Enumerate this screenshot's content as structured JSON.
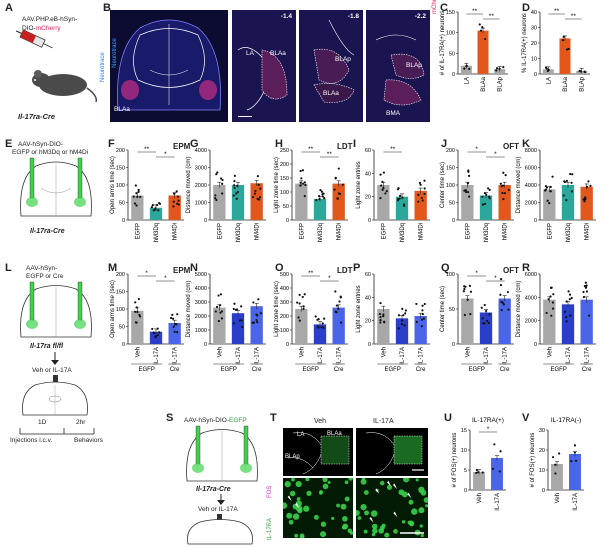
{
  "panels": {
    "A": {
      "letter": "A",
      "virus_line1": "AAV.PHP.eB-hSyn-",
      "virus_line2": "DIO-",
      "virus_color": "mCherry",
      "mouse": "Il-17ra-Cre"
    },
    "B": {
      "letter": "B",
      "neurotrace": "Neurotrace",
      "mcherry": "mCherry",
      "coords": [
        "-1.4",
        "-1.8",
        "-2.2"
      ],
      "region_labels": [
        "BLAa",
        "LA",
        "BLAa",
        "BLAp",
        "BLAa",
        "BLAp",
        "BMA"
      ]
    },
    "E": {
      "letter": "E",
      "virus_line1": "AAV-hSyn-DIO-",
      "virus_line2": "EGFP or hM3Dq or hM4Di",
      "mouse": "Il-17ra-Cre"
    },
    "L": {
      "letter": "L",
      "virus_line1": "AAV-hSyn-",
      "virus_line2": "EGFP or Cre",
      "mouse": "Il-17ra fl/fl",
      "veh_il17": "Veh or IL-17A",
      "timeline": [
        "1D",
        "2hr"
      ],
      "injections": "Injections i.c.v.",
      "behaviors": "Behaviors"
    },
    "S": {
      "letter": "S",
      "virus": "AAV-hSyn-DIO-",
      "virus_color": "EGFP",
      "mouse": "Il-17ra-Cre",
      "veh_il17": "Veh or IL-17A"
    },
    "T": {
      "letter": "T",
      "veh": "Veh",
      "il17": "IL-17A",
      "regions": [
        "LA",
        "BLAa",
        "BLAp"
      ],
      "il17ra": "IL-17RA",
      "fos": "FOS"
    }
  },
  "section_headers": {
    "epm1": "EPM",
    "ldt1": "LDT",
    "oft1": "OFT",
    "epm2": "EPM",
    "ldt2": "LDT",
    "oft2": "OFT"
  },
  "colors": {
    "grey": "#a8a8a8",
    "orange": "#e2571b",
    "teal": "#2ba89b",
    "blue": "#2a3ec9",
    "lightblue": "#4a65e8",
    "green": "#3dd14c"
  },
  "chart_data": [
    {
      "id": "C",
      "type": "bar",
      "ylabel": "# of IL-17RA(+) neurons",
      "categories": [
        "LA",
        "BLAa",
        "BLAp"
      ],
      "values": [
        20,
        105,
        12
      ],
      "ylim": [
        0,
        150
      ],
      "yticks": [
        0,
        50,
        100,
        150
      ],
      "sig": [
        "**",
        "**"
      ]
    },
    {
      "id": "D",
      "type": "bar",
      "ylabel": "% IL-17RA(+) neurons",
      "categories": [
        "LA",
        "BLAa",
        "BLAp"
      ],
      "values": [
        3,
        23,
        2
      ],
      "ylim": [
        0,
        40
      ],
      "yticks": [
        0,
        10,
        20,
        30,
        40
      ],
      "sig": [
        "**",
        "**"
      ]
    },
    {
      "id": "F",
      "type": "bar",
      "ylabel": "Open arms time (sec)",
      "categories": [
        "EGFP",
        "hM3Dq",
        "hM4Di"
      ],
      "values": [
        70,
        35,
        70
      ],
      "ylim": [
        0,
        200
      ],
      "yticks": [
        0,
        50,
        100,
        150,
        200
      ],
      "sig": [
        "**",
        "*"
      ]
    },
    {
      "id": "G",
      "type": "bar",
      "ylabel": "Distance moved (cm)",
      "categories": [
        "EGFP",
        "hM3Dq",
        "hM4Di"
      ],
      "values": [
        2000,
        2000,
        2100
      ],
      "ylim": [
        0,
        4000
      ],
      "yticks": [
        0,
        1000,
        2000,
        3000,
        4000
      ],
      "sig": []
    },
    {
      "id": "H",
      "type": "bar",
      "ylabel": "Light zone time (sec)",
      "categories": [
        "EGFP",
        "hM3Dq",
        "hM4Di"
      ],
      "values": [
        130,
        75,
        130
      ],
      "ylim": [
        0,
        250
      ],
      "yticks": [
        0,
        50,
        100,
        150,
        200,
        250
      ],
      "sig": [
        "**",
        "**"
      ]
    },
    {
      "id": "I",
      "type": "bar",
      "ylabel": "Light zone entries",
      "categories": [
        "EGFP",
        "hM3Dq",
        "hM4Di"
      ],
      "values": [
        30,
        20,
        25
      ],
      "ylim": [
        0,
        60
      ],
      "yticks": [
        0,
        20,
        40,
        60
      ],
      "sig": [
        "**"
      ]
    },
    {
      "id": "J",
      "type": "bar",
      "ylabel": "Center time (sec)",
      "categories": [
        "EGFP",
        "hM3Dq",
        "hM4Di"
      ],
      "values": [
        100,
        70,
        100
      ],
      "ylim": [
        0,
        200
      ],
      "yticks": [
        0,
        50,
        100,
        150,
        200
      ],
      "sig": [
        "*",
        "*"
      ]
    },
    {
      "id": "K",
      "type": "bar",
      "ylabel": "Distance moved (cm)",
      "categories": [
        "EGFP",
        "hM3Dq",
        "hM4Di"
      ],
      "values": [
        3500,
        4000,
        3800
      ],
      "ylim": [
        0,
        8000
      ],
      "yticks": [
        0,
        2000,
        4000,
        6000,
        8000
      ],
      "sig": []
    },
    {
      "id": "M",
      "type": "bar",
      "ylabel": "Open arms time (sec)",
      "categories": [
        "Veh",
        "IL-17A",
        "IL-17A"
      ],
      "groups": [
        "EGFP",
        "Cre"
      ],
      "values": [
        95,
        35,
        60
      ],
      "ylim": [
        0,
        200
      ],
      "yticks": [
        0,
        50,
        100,
        150,
        200
      ],
      "sig": [
        "*",
        "*"
      ]
    },
    {
      "id": "N",
      "type": "bar",
      "ylabel": "Distance moved (cm)",
      "categories": [
        "Veh",
        "IL-17A",
        "IL-17A"
      ],
      "groups": [
        "EGFP",
        "Cre"
      ],
      "values": [
        2600,
        2200,
        2700
      ],
      "ylim": [
        0,
        5000
      ],
      "yticks": [
        0,
        1000,
        2000,
        3000,
        4000,
        5000
      ],
      "sig": []
    },
    {
      "id": "O",
      "type": "bar",
      "ylabel": "Light zone time (sec)",
      "categories": [
        "Veh",
        "IL-17A",
        "IL-17A"
      ],
      "groups": [
        "EGFP",
        "Cre"
      ],
      "values": [
        250,
        140,
        260
      ],
      "ylim": [
        0,
        500
      ],
      "yticks": [
        0,
        100,
        200,
        300,
        400,
        500
      ],
      "sig": [
        "**",
        "*"
      ]
    },
    {
      "id": "P",
      "type": "bar",
      "ylabel": "Light zone entries",
      "categories": [
        "Veh",
        "IL-17A",
        "IL-17A"
      ],
      "groups": [
        "EGFP",
        "Cre"
      ],
      "values": [
        30,
        22,
        24
      ],
      "ylim": [
        0,
        60
      ],
      "yticks": [
        0,
        20,
        40,
        60
      ],
      "sig": []
    },
    {
      "id": "Q",
      "type": "bar",
      "ylabel": "Center time (sec)",
      "categories": [
        "Veh",
        "IL-17A",
        "IL-17A"
      ],
      "groups": [
        "EGFP",
        "Cre"
      ],
      "values": [
        65,
        45,
        65
      ],
      "ylim": [
        0,
        100
      ],
      "yticks": [
        0,
        50,
        100
      ],
      "sig": [
        "*",
        "*"
      ]
    },
    {
      "id": "R",
      "type": "bar",
      "ylabel": "Distance moved (cm)",
      "categories": [
        "Veh",
        "IL-17A",
        "IL-17A"
      ],
      "groups": [
        "EGFP",
        "Cre"
      ],
      "values": [
        3800,
        3400,
        3800
      ],
      "ylim": [
        0,
        6000
      ],
      "yticks": [
        0,
        2000,
        4000,
        6000
      ],
      "sig": []
    },
    {
      "id": "U",
      "type": "bar",
      "title": "IL-17RA(+)",
      "ylabel": "# of FOS(+) neurons",
      "categories": [
        "Veh",
        "IL-17A"
      ],
      "values": [
        4.5,
        8
      ],
      "ylim": [
        0,
        15
      ],
      "yticks": [
        0,
        5,
        10,
        15
      ],
      "sig": [
        "*"
      ]
    },
    {
      "id": "V",
      "type": "bar",
      "title": "IL-17RA(-)",
      "ylabel": "# of FOS(+) neurons",
      "categories": [
        "Veh",
        "IL-17A"
      ],
      "values": [
        13,
        18
      ],
      "ylim": [
        0,
        30
      ],
      "yticks": [
        0,
        10,
        20,
        30
      ],
      "sig": []
    }
  ]
}
